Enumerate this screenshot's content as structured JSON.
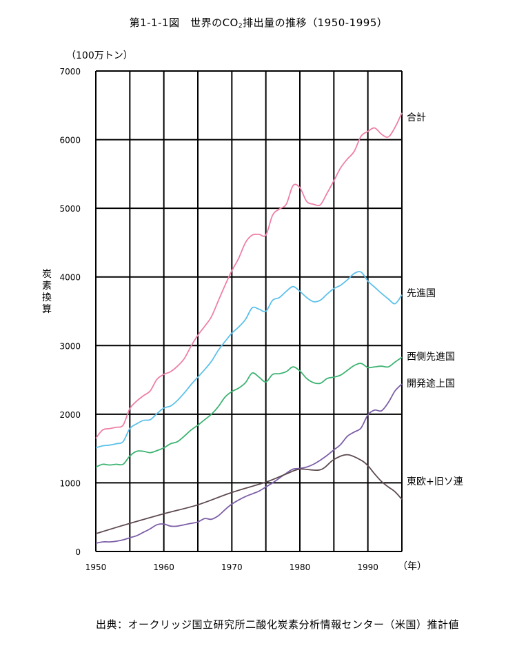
{
  "title": {
    "main": "第1-1-1図　世界のCO",
    "sub": "2",
    "rest": "排出量の推移（1950-1995）"
  },
  "unit_label": "（100万トン）",
  "ylabel": "炭素換算",
  "xunit_label": "（年）",
  "source": "出典：オークリッジ国立研究所二酸化炭素分析情報センター（米国）推計値",
  "chart_data": {
    "type": "line",
    "title": "第1-1-1図　世界のCO2排出量の推移（1950-1995）",
    "xlabel": "（年）",
    "ylabel": "炭素換算（100万トン）",
    "xlim": [
      1950,
      1995
    ],
    "ylim": [
      0,
      7000
    ],
    "xticks": [
      1950,
      1960,
      1970,
      1980,
      1990
    ],
    "yticks": [
      0,
      1000,
      2000,
      3000,
      4000,
      5000,
      6000,
      7000
    ],
    "grid": true,
    "legend": "right-of-line-ends",
    "series": [
      {
        "name": "合計",
        "color": "#ee7fa8",
        "points": [
          [
            1950,
            1650
          ],
          [
            1951,
            1770
          ],
          [
            1952,
            1790
          ],
          [
            1953,
            1810
          ],
          [
            1954,
            1840
          ],
          [
            1955,
            2080
          ],
          [
            1956,
            2190
          ],
          [
            1957,
            2270
          ],
          [
            1958,
            2340
          ],
          [
            1959,
            2510
          ],
          [
            1960,
            2580
          ],
          [
            1961,
            2620
          ],
          [
            1962,
            2700
          ],
          [
            1963,
            2810
          ],
          [
            1964,
            2990
          ],
          [
            1965,
            3150
          ],
          [
            1966,
            3280
          ],
          [
            1967,
            3420
          ],
          [
            1968,
            3650
          ],
          [
            1969,
            3880
          ],
          [
            1970,
            4090
          ],
          [
            1971,
            4270
          ],
          [
            1972,
            4500
          ],
          [
            1973,
            4610
          ],
          [
            1974,
            4620
          ],
          [
            1975,
            4610
          ],
          [
            1976,
            4900
          ],
          [
            1977,
            4990
          ],
          [
            1978,
            5060
          ],
          [
            1979,
            5330
          ],
          [
            1980,
            5300
          ],
          [
            1981,
            5100
          ],
          [
            1982,
            5060
          ],
          [
            1983,
            5050
          ],
          [
            1984,
            5220
          ],
          [
            1985,
            5400
          ],
          [
            1986,
            5590
          ],
          [
            1987,
            5720
          ],
          [
            1988,
            5830
          ],
          [
            1989,
            6050
          ],
          [
            1990,
            6120
          ],
          [
            1991,
            6170
          ],
          [
            1992,
            6080
          ],
          [
            1993,
            6040
          ],
          [
            1994,
            6180
          ],
          [
            1995,
            6390
          ]
        ]
      },
      {
        "name": "先進国",
        "color": "#5bc0eb",
        "points": [
          [
            1950,
            1510
          ],
          [
            1951,
            1540
          ],
          [
            1952,
            1550
          ],
          [
            1953,
            1570
          ],
          [
            1954,
            1600
          ],
          [
            1955,
            1790
          ],
          [
            1956,
            1860
          ],
          [
            1957,
            1910
          ],
          [
            1958,
            1920
          ],
          [
            1959,
            2010
          ],
          [
            1960,
            2090
          ],
          [
            1961,
            2120
          ],
          [
            1962,
            2200
          ],
          [
            1963,
            2310
          ],
          [
            1964,
            2430
          ],
          [
            1965,
            2540
          ],
          [
            1966,
            2650
          ],
          [
            1967,
            2770
          ],
          [
            1968,
            2930
          ],
          [
            1969,
            3060
          ],
          [
            1970,
            3180
          ],
          [
            1971,
            3270
          ],
          [
            1972,
            3380
          ],
          [
            1973,
            3550
          ],
          [
            1974,
            3530
          ],
          [
            1975,
            3500
          ],
          [
            1976,
            3660
          ],
          [
            1977,
            3700
          ],
          [
            1978,
            3790
          ],
          [
            1979,
            3860
          ],
          [
            1980,
            3790
          ],
          [
            1981,
            3700
          ],
          [
            1982,
            3640
          ],
          [
            1983,
            3660
          ],
          [
            1984,
            3750
          ],
          [
            1985,
            3830
          ],
          [
            1986,
            3880
          ],
          [
            1987,
            3960
          ],
          [
            1988,
            4050
          ],
          [
            1989,
            4070
          ],
          [
            1990,
            3940
          ],
          [
            1991,
            3850
          ],
          [
            1992,
            3760
          ],
          [
            1993,
            3680
          ],
          [
            1994,
            3610
          ],
          [
            1995,
            3740
          ]
        ]
      },
      {
        "name": "西側先進国",
        "color": "#3cb371",
        "points": [
          [
            1950,
            1230
          ],
          [
            1951,
            1270
          ],
          [
            1952,
            1260
          ],
          [
            1953,
            1270
          ],
          [
            1954,
            1270
          ],
          [
            1955,
            1390
          ],
          [
            1956,
            1460
          ],
          [
            1957,
            1460
          ],
          [
            1958,
            1440
          ],
          [
            1959,
            1470
          ],
          [
            1960,
            1510
          ],
          [
            1961,
            1570
          ],
          [
            1962,
            1600
          ],
          [
            1963,
            1680
          ],
          [
            1964,
            1770
          ],
          [
            1965,
            1840
          ],
          [
            1966,
            1920
          ],
          [
            1967,
            2000
          ],
          [
            1968,
            2110
          ],
          [
            1969,
            2250
          ],
          [
            1970,
            2330
          ],
          [
            1971,
            2380
          ],
          [
            1972,
            2460
          ],
          [
            1973,
            2600
          ],
          [
            1974,
            2540
          ],
          [
            1975,
            2470
          ],
          [
            1976,
            2580
          ],
          [
            1977,
            2590
          ],
          [
            1978,
            2620
          ],
          [
            1979,
            2690
          ],
          [
            1980,
            2630
          ],
          [
            1981,
            2520
          ],
          [
            1982,
            2460
          ],
          [
            1983,
            2450
          ],
          [
            1984,
            2520
          ],
          [
            1985,
            2540
          ],
          [
            1986,
            2570
          ],
          [
            1987,
            2640
          ],
          [
            1988,
            2710
          ],
          [
            1989,
            2740
          ],
          [
            1990,
            2680
          ],
          [
            1991,
            2690
          ],
          [
            1992,
            2700
          ],
          [
            1993,
            2690
          ],
          [
            1994,
            2760
          ],
          [
            1995,
            2830
          ]
        ]
      },
      {
        "name": "開発途上国",
        "color": "#7b5ea7",
        "points": [
          [
            1950,
            120
          ],
          [
            1951,
            140
          ],
          [
            1952,
            140
          ],
          [
            1953,
            150
          ],
          [
            1954,
            170
          ],
          [
            1955,
            200
          ],
          [
            1956,
            230
          ],
          [
            1957,
            280
          ],
          [
            1958,
            330
          ],
          [
            1959,
            390
          ],
          [
            1960,
            400
          ],
          [
            1961,
            370
          ],
          [
            1962,
            370
          ],
          [
            1963,
            390
          ],
          [
            1964,
            410
          ],
          [
            1965,
            430
          ],
          [
            1966,
            480
          ],
          [
            1967,
            470
          ],
          [
            1968,
            520
          ],
          [
            1969,
            610
          ],
          [
            1970,
            690
          ],
          [
            1971,
            750
          ],
          [
            1972,
            800
          ],
          [
            1973,
            840
          ],
          [
            1974,
            880
          ],
          [
            1975,
            940
          ],
          [
            1976,
            1000
          ],
          [
            1977,
            1070
          ],
          [
            1978,
            1140
          ],
          [
            1979,
            1200
          ],
          [
            1980,
            1210
          ],
          [
            1981,
            1230
          ],
          [
            1982,
            1270
          ],
          [
            1983,
            1330
          ],
          [
            1984,
            1400
          ],
          [
            1985,
            1480
          ],
          [
            1986,
            1560
          ],
          [
            1987,
            1680
          ],
          [
            1988,
            1740
          ],
          [
            1989,
            1800
          ],
          [
            1990,
            1990
          ],
          [
            1991,
            2060
          ],
          [
            1992,
            2050
          ],
          [
            1993,
            2170
          ],
          [
            1994,
            2340
          ],
          [
            1995,
            2440
          ]
        ]
      },
      {
        "name": "東欧+旧ソ連",
        "color": "#5d4a4f",
        "points": [
          [
            1950,
            260
          ],
          [
            1955,
            410
          ],
          [
            1960,
            550
          ],
          [
            1965,
            680
          ],
          [
            1970,
            860
          ],
          [
            1975,
            1010
          ],
          [
            1978,
            1130
          ],
          [
            1980,
            1200
          ],
          [
            1983,
            1190
          ],
          [
            1985,
            1340
          ],
          [
            1987,
            1410
          ],
          [
            1989,
            1330
          ],
          [
            1990,
            1250
          ],
          [
            1991,
            1130
          ],
          [
            1992,
            1020
          ],
          [
            1993,
            940
          ],
          [
            1994,
            870
          ],
          [
            1995,
            760
          ]
        ]
      }
    ]
  }
}
